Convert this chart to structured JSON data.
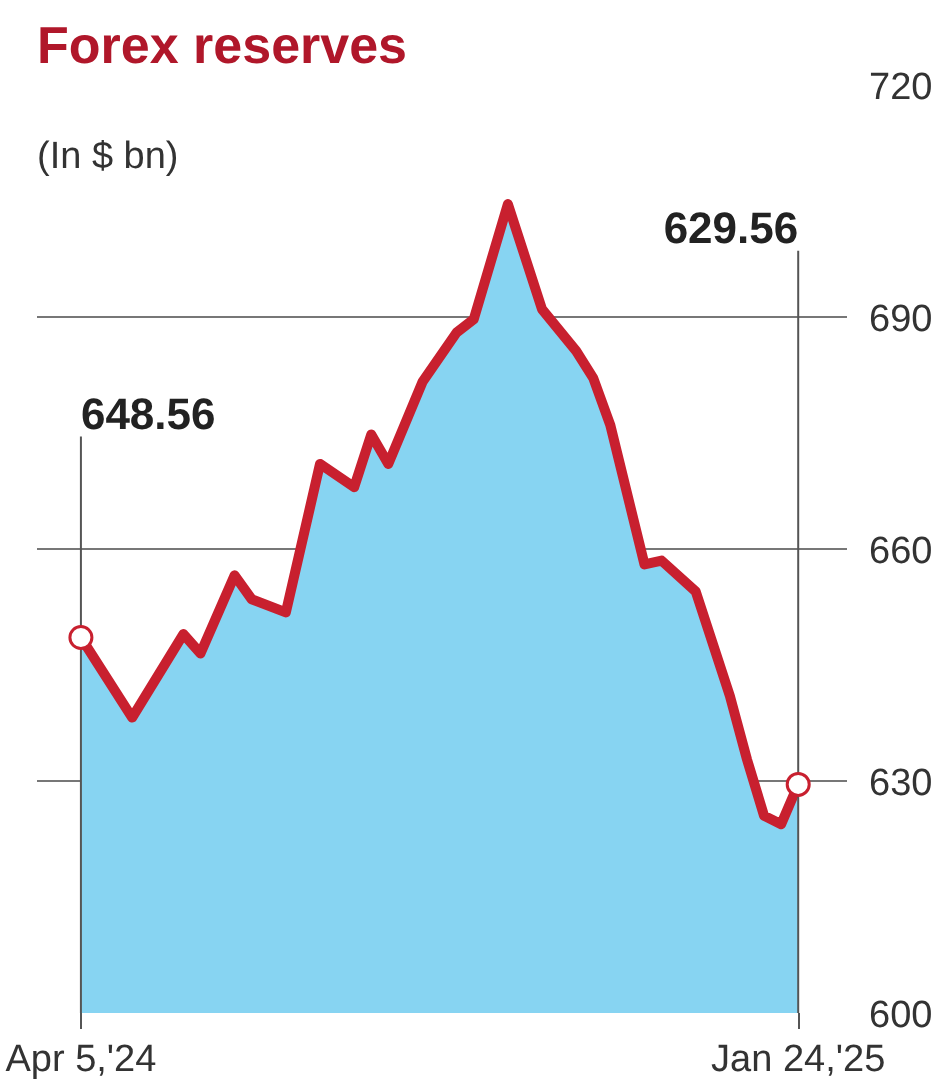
{
  "chart_data": {
    "type": "area",
    "title": "Forex reserves",
    "ylabel": "(In $ bn)",
    "x": [
      "2024-04-05",
      "2024-04-26",
      "2024-05-17",
      "2024-05-24",
      "2024-06-07",
      "2024-06-14",
      "2024-06-28",
      "2024-07-12",
      "2024-07-26",
      "2024-08-02",
      "2024-08-09",
      "2024-08-23",
      "2024-09-06",
      "2024-09-13",
      "2024-09-27",
      "2024-10-11",
      "2024-10-25",
      "2024-11-01",
      "2024-11-08",
      "2024-11-22",
      "2024-11-29",
      "2024-12-13",
      "2024-12-27",
      "2025-01-03",
      "2025-01-10",
      "2025-01-17",
      "2025-01-24"
    ],
    "series": [
      {
        "color": "#87d4f2",
        "values": [
          648.56,
          638.2,
          649,
          646.5,
          656.6,
          653.5,
          651.8,
          671,
          668,
          674.8,
          671,
          681.6,
          688,
          689.7,
          704.6,
          691,
          685.6,
          682.1,
          676,
          658,
          658.5,
          654.5,
          641,
          632.8,
          625.5,
          624.4,
          629.56
        ]
      },
      {
        "type": "line",
        "color": "#c8202f",
        "values": [
          648.56,
          638.2,
          649,
          646.5,
          656.6,
          653.5,
          651.8,
          671,
          668,
          674.8,
          671,
          681.6,
          688,
          689.7,
          704.6,
          691,
          685.6,
          682.1,
          676,
          658,
          658.5,
          654.5,
          641,
          632.8,
          625.5,
          624.4,
          629.56
        ]
      }
    ],
    "xlim": [
      "2024-03-18",
      "2025-02-13"
    ],
    "xticks": [
      {
        "value": "2024-04-05",
        "label": "Apr 5,'24"
      },
      {
        "value": "2025-01-24",
        "label": "Jan 24,'25"
      }
    ],
    "ylim": [
      600,
      720
    ],
    "yticks": [
      600,
      630,
      660,
      690,
      720
    ],
    "ref_lines": [
      {
        "axis": "x",
        "value": "2024-04-05",
        "color": "#555555",
        "label": "648.56"
      },
      {
        "axis": "x",
        "value": "2025-01-24",
        "color": "#555555",
        "label": "629.56"
      }
    ],
    "grid": "y"
  }
}
